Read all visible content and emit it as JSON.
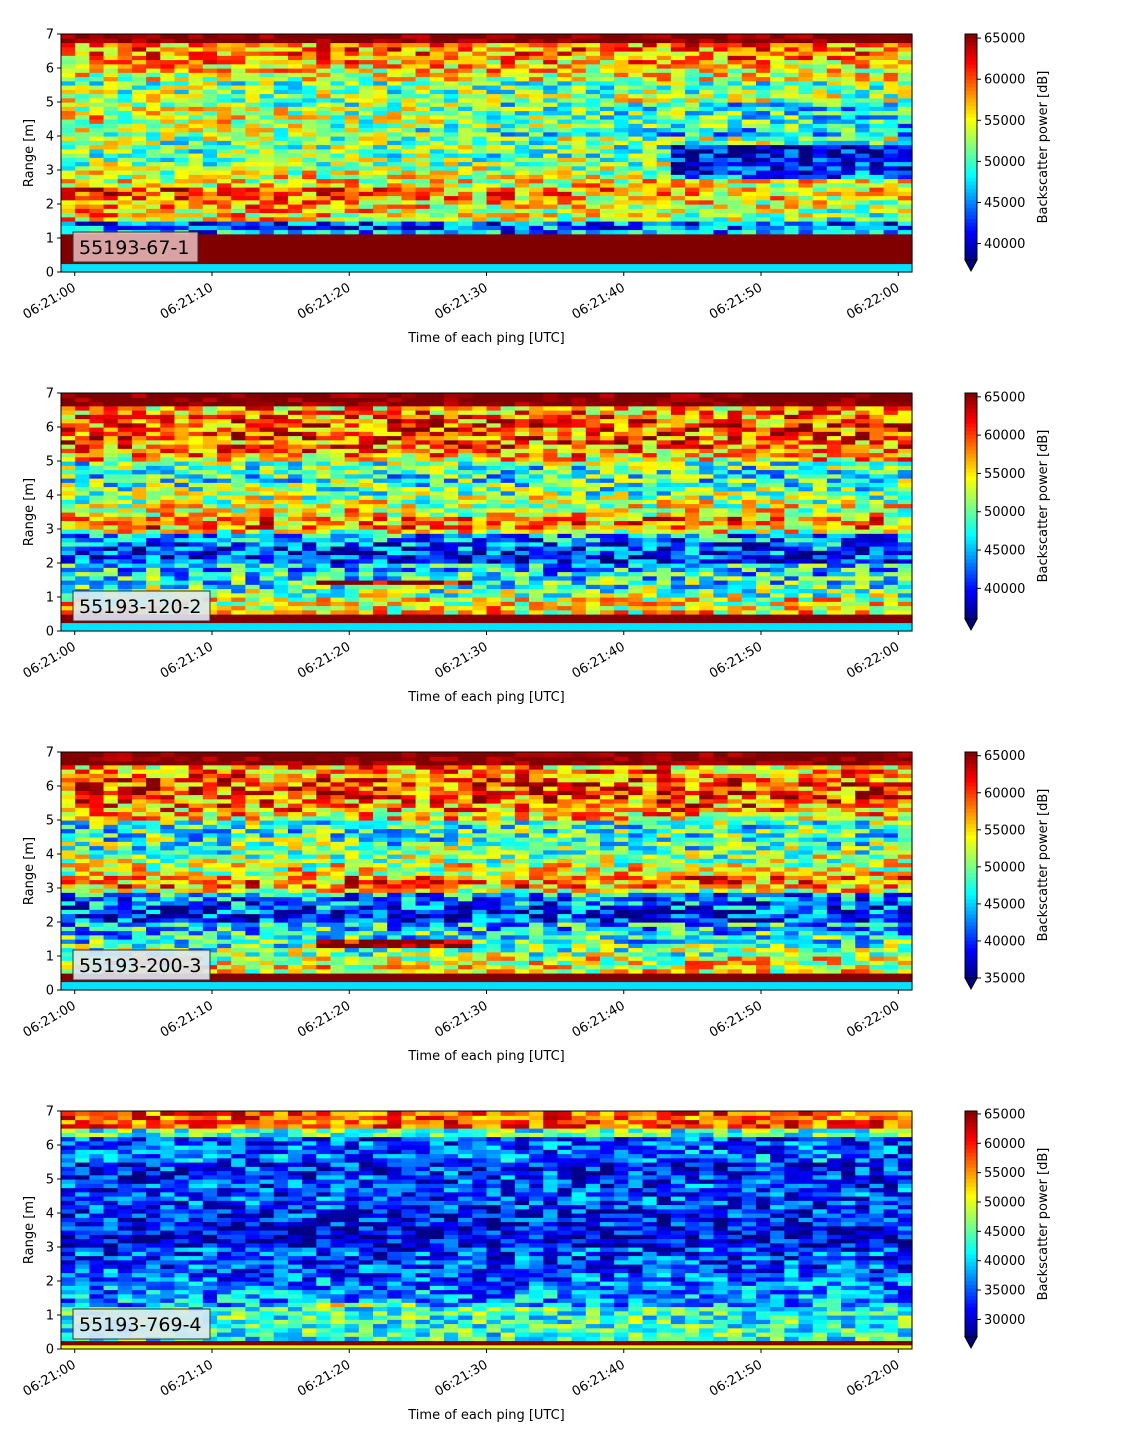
{
  "chart_data": [
    {
      "type": "heatmap",
      "id": "55193-67-1",
      "label": "55193-67-1",
      "xlabel": "Time of each ping [UTC]",
      "ylabel": "Range [m]",
      "colorbar_label": "Backscatter power [dB]",
      "colormap": "jet",
      "x_ticks": [
        "06:21:00",
        "06:21:10",
        "06:21:20",
        "06:21:30",
        "06:21:40",
        "06:21:50",
        "06:22:00"
      ],
      "x_range_seconds": [
        -1,
        61
      ],
      "y_ticks": [
        0,
        1,
        2,
        3,
        4,
        5,
        6,
        7
      ],
      "ylim": [
        0,
        7
      ],
      "clim": [
        38000,
        65500
      ],
      "colorbar_ticks": [
        40000,
        45000,
        50000,
        55000,
        60000,
        65000
      ],
      "grid": false,
      "label_box_color": "#e3b4b4",
      "features": {
        "near_band": [
          0.25,
          1.15
        ],
        "bright_band": [
          1.55,
          2.45
        ],
        "top_band": 6.7,
        "dark_zone": [
          4.0,
          5.0
        ],
        "trend": "darker-later"
      }
    },
    {
      "type": "heatmap",
      "id": "55193-120-2",
      "label": "55193-120-2",
      "xlabel": "Time of each ping [UTC]",
      "ylabel": "Range [m]",
      "colorbar_label": "Backscatter power [dB]",
      "colormap": "jet",
      "x_ticks": [
        "06:21:00",
        "06:21:10",
        "06:21:20",
        "06:21:30",
        "06:21:40",
        "06:21:50",
        "06:22:00"
      ],
      "x_range_seconds": [
        -1,
        61
      ],
      "y_ticks": [
        0,
        1,
        2,
        3,
        4,
        5,
        6,
        7
      ],
      "ylim": [
        0,
        7
      ],
      "clim": [
        36000,
        65500
      ],
      "colorbar_ticks": [
        40000,
        45000,
        50000,
        55000,
        60000,
        65000
      ],
      "grid": false,
      "label_box_color": "#dde8f2",
      "features": {
        "near_band": [
          0.25,
          0.55
        ],
        "bright_band": [
          1.35,
          1.5
        ],
        "top_band": 6.6,
        "dark_zone": [
          2.0,
          2.9
        ],
        "trend": "mixed"
      }
    },
    {
      "type": "heatmap",
      "id": "55193-200-3",
      "label": "55193-200-3",
      "xlabel": "Time of each ping [UTC]",
      "ylabel": "Range [m]",
      "colorbar_label": "Backscatter power [dB]",
      "colormap": "jet",
      "x_ticks": [
        "06:21:00",
        "06:21:10",
        "06:21:20",
        "06:21:30",
        "06:21:40",
        "06:21:50",
        "06:22:00"
      ],
      "x_range_seconds": [
        -1,
        61
      ],
      "y_ticks": [
        0,
        1,
        2,
        3,
        4,
        5,
        6,
        7
      ],
      "ylim": [
        0,
        7
      ],
      "clim": [
        35000,
        65500
      ],
      "colorbar_ticks": [
        35000,
        40000,
        45000,
        50000,
        55000,
        60000,
        65000
      ],
      "grid": false,
      "label_box_color": "#dde8f2",
      "features": {
        "near_band": [
          0.25,
          0.45
        ],
        "bright_band": [
          1.3,
          1.45
        ],
        "top_band": 6.6,
        "dark_zone": [
          2.0,
          2.9
        ],
        "trend": "mixed"
      }
    },
    {
      "type": "heatmap",
      "id": "55193-769-4",
      "label": "55193-769-4",
      "xlabel": "Time of each ping [UTC]",
      "ylabel": "Range [m]",
      "colorbar_label": "Backscatter power [dB]",
      "colormap": "jet",
      "x_ticks": [
        "06:21:00",
        "06:21:10",
        "06:21:20",
        "06:21:30",
        "06:21:40",
        "06:21:50",
        "06:22:00"
      ],
      "x_range_seconds": [
        -1,
        61
      ],
      "y_ticks": [
        0,
        1,
        2,
        3,
        4,
        5,
        6,
        7
      ],
      "ylim": [
        0,
        7
      ],
      "clim": [
        27000,
        65500
      ],
      "colorbar_ticks": [
        30000,
        35000,
        40000,
        45000,
        50000,
        55000,
        60000,
        65000
      ],
      "grid": false,
      "label_box_color": "#dde8f2",
      "features": {
        "near_band": [
          0.15,
          0.3
        ],
        "bright_band": [
          1.3,
          1.4
        ],
        "top_band": 6.55,
        "dark_zone": [
          3.0,
          5.5
        ],
        "trend": "dark"
      }
    }
  ]
}
